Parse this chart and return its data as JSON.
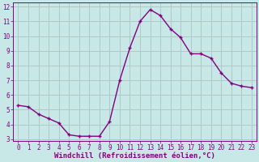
{
  "x": [
    0,
    1,
    2,
    3,
    4,
    5,
    6,
    7,
    8,
    9,
    10,
    11,
    12,
    13,
    14,
    15,
    16,
    17,
    18,
    19,
    20,
    21,
    22,
    23
  ],
  "y": [
    5.3,
    5.2,
    4.7,
    4.4,
    4.1,
    3.3,
    3.2,
    3.2,
    3.2,
    4.2,
    7.0,
    9.2,
    11.0,
    11.8,
    11.4,
    10.5,
    9.9,
    8.8,
    8.8,
    8.5,
    7.5,
    6.8,
    6.6,
    6.5
  ],
  "line_color": "#800080",
  "marker": "+",
  "marker_color": "#800080",
  "bg_color": "#c8e8e8",
  "grid_color": "#b0c8c8",
  "xlabel": "Windchill (Refroidissement éolien,°C)",
  "xlabel_color": "#800080",
  "tick_color": "#800080",
  "ylim": [
    3,
    12
  ],
  "xlim": [
    -0.5,
    23.5
  ],
  "yticks": [
    3,
    4,
    5,
    6,
    7,
    8,
    9,
    10,
    11,
    12
  ],
  "xticks": [
    0,
    1,
    2,
    3,
    4,
    5,
    6,
    7,
    8,
    9,
    10,
    11,
    12,
    13,
    14,
    15,
    16,
    17,
    18,
    19,
    20,
    21,
    22,
    23
  ],
  "tick_fontsize": 5.5,
  "xlabel_fontsize": 6.5,
  "linewidth": 1.0,
  "markersize": 3.5
}
